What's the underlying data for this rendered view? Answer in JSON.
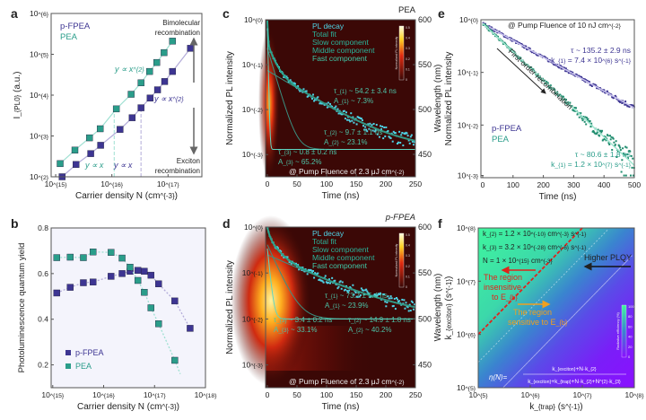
{
  "colors": {
    "pea": "#2a9d8a",
    "pfpea": "#3d3592",
    "pea_light": "#9fe0d2",
    "pfpea_light": "#b3acd9",
    "cyan": "#4fd3e6",
    "fit": "#2aa58e",
    "red": "#e0241b",
    "orange": "#f0a020"
  },
  "panel_labels": [
    "a",
    "b",
    "c",
    "d",
    "e",
    "f"
  ],
  "chart_data": [
    {
      "panel": "a",
      "type": "scatter",
      "xscale": "log",
      "yscale": "log",
      "xlabel": "Carrier density N (cm^{-3})",
      "ylabel": "I_{PL0} (a.u.)",
      "xlim": [
        830000000000000.0,
        4e+17
      ],
      "ylim": [
        100,
        1000000
      ],
      "xticks": [
        1000000000000000.0,
        1e+16,
        1e+17
      ],
      "xtick_labels": [
        "10^{15}",
        "10^{16}",
        "10^{17}"
      ],
      "yticks": [
        100,
        1000,
        10000,
        100000,
        1000000
      ],
      "ytick_labels": [
        "10^{2}",
        "10^{3}",
        "10^{4}",
        "10^{5}",
        "10^{6}"
      ],
      "series": [
        {
          "name": "p-FPEA",
          "x": [
            1300000000000000.0,
            2300000000000000.0,
            4200000000000000.0,
            6300000000000000.0,
            1.4e+16,
            2.3e+16,
            3.3e+16,
            4.8e+16,
            6.5e+16,
            8.7e+16,
            1.2e+17,
            2.5e+17
          ],
          "y": [
            100,
            200,
            370,
            590,
            1450,
            2800,
            4900,
            8500,
            13500,
            21500,
            38000,
            140000
          ]
        },
        {
          "name": "PEA",
          "x": [
            1200000000000000.0,
            2200000000000000.0,
            4000000000000000.0,
            6200000000000000.0,
            1.2e+16,
            2.2e+16,
            3.3e+16,
            4.7e+16,
            6.3e+16,
            8.5e+16,
            1.2e+17
          ],
          "y": [
            210,
            450,
            900,
            1500,
            4600,
            10500,
            20000,
            38000,
            63000,
            110000,
            210000
          ]
        }
      ],
      "threshold_x": {
        "PEA": 1.1e+16,
        "p-FPEA": 3.3e+16
      },
      "annotations": [
        "y ∝ x^{2}",
        "y ∝ x^{2}",
        "y ∝ x",
        "y ∝ x",
        "Bimolecular",
        "recombination",
        "Exciton",
        "recombination"
      ],
      "legend": [
        "p-FPEA",
        "PEA"
      ],
      "legend_position": "top-left"
    },
    {
      "panel": "b",
      "type": "scatter",
      "xscale": "log",
      "xlabel": "Carrier density N (cm^{-3})",
      "ylabel": "Photoluminescence quantum yield",
      "xlim": [
        930000000000000.0,
        1e+18
      ],
      "ylim": [
        0.1,
        0.8
      ],
      "xticks": [
        1000000000000000.0,
        1e+16,
        1e+17,
        1e+18
      ],
      "xtick_labels": [
        "10^{15}",
        "10^{16}",
        "10^{17}",
        "10^{18}"
      ],
      "yticks": [
        0.2,
        0.4,
        0.6,
        0.8
      ],
      "ytick_labels": [
        "0.2",
        "0.4",
        "0.6",
        "0.8"
      ],
      "series": [
        {
          "name": "p-FPEA",
          "x": [
            1200000000000000.0,
            2200000000000000.0,
            4000000000000000.0,
            6200000000000000.0,
            1.4e+16,
            2.3e+16,
            3.3e+16,
            4.7e+16,
            6.3e+16,
            8.5e+16,
            1.2e+17,
            2.5e+17,
            5e+17
          ],
          "y": [
            0.515,
            0.54,
            0.56,
            0.563,
            0.588,
            0.6,
            0.61,
            0.614,
            0.61,
            0.593,
            0.555,
            0.48,
            0.36
          ]
        },
        {
          "name": "PEA",
          "x": [
            1200000000000000.0,
            2200000000000000.0,
            4000000000000000.0,
            6200000000000000.0,
            1.4e+16,
            2.3e+16,
            3.3e+16,
            4.7e+16,
            6.3e+16,
            8.5e+16,
            1.2e+17,
            2.5e+17
          ],
          "y": [
            0.67,
            0.672,
            0.67,
            0.695,
            0.693,
            0.668,
            0.628,
            0.57,
            0.518,
            0.45,
            0.38,
            0.22
          ]
        }
      ],
      "legend": [
        "p-FPEA",
        "PEA"
      ],
      "legend_position": "bottom-left"
    },
    {
      "panel": "c",
      "type": "line",
      "title": "PEA",
      "yscale": "log",
      "xlabel": "Time (ns)",
      "ylabel": "Normalized PL intensity",
      "y2label": "Wavelength (nm)",
      "xlim": [
        0,
        250
      ],
      "ylim": [
        0.00032,
        1
      ],
      "y2lim": [
        425,
        600
      ],
      "xticks": [
        0,
        50,
        100,
        150,
        200,
        250
      ],
      "xtick_labels": [
        "0",
        "50",
        "100",
        "150",
        "200",
        "250"
      ],
      "yticks": [
        0.001,
        0.01,
        0.1,
        1
      ],
      "ytick_labels": [
        "10^{-3}",
        "10^{-2}",
        "10^{-1}",
        "10^{0}"
      ],
      "y2ticks": [
        450,
        500,
        550,
        600
      ],
      "y2tick_labels": [
        "450",
        "500",
        "550",
        "600"
      ],
      "legend": [
        "PL decay",
        "Total fit",
        "Slow component",
        "Middle component",
        "Fast component"
      ],
      "components": [
        {
          "tau": 54.2,
          "amp": 0.073
        },
        {
          "tau": 9.7,
          "amp": 0.231
        },
        {
          "tau": 0.8,
          "amp": 0.652
        }
      ],
      "offset": 0.0013,
      "annotations": [
        "τ_{1} ~ 54.2 ± 3.4 ns",
        "A_{1} ~ 7.3%",
        "τ_{2} ~ 9.7 ± 1.1 ns",
        "A_{2} ~ 23.1%",
        "τ_{3} ~ 0.8 ± 0.2 ns",
        "A_{3} ~ 65.2%",
        "@ Pump Fluence of 2.3 μJ cm^{-2}"
      ],
      "colorbar": {
        "label": "Normalized PL intensity",
        "ticks": [
          "0.5",
          "0.4",
          "0.3",
          "0.2",
          "0.1",
          "0"
        ]
      }
    },
    {
      "panel": "d",
      "type": "line",
      "title": "p-FPEA",
      "yscale": "log",
      "xlabel": "Time (ns)",
      "ylabel": "Normalized PL intensity",
      "y2label": "Wavelength (nm)",
      "xlim": [
        0,
        250
      ],
      "ylim": [
        0.00032,
        1
      ],
      "y2lim": [
        425,
        600
      ],
      "xticks": [
        0,
        50,
        100,
        150,
        200,
        250
      ],
      "xtick_labels": [
        "0",
        "50",
        "100",
        "150",
        "200",
        "250"
      ],
      "yticks": [
        0.001,
        0.01,
        0.1,
        1
      ],
      "ytick_labels": [
        "10^{-3}",
        "10^{-2}",
        "10^{-1}",
        "10^{0}"
      ],
      "y2ticks": [
        450,
        500,
        550,
        600
      ],
      "y2tick_labels": [
        "450",
        "500",
        "550",
        "600"
      ],
      "legend": [
        "PL decay",
        "Total fit",
        "Slow component",
        "Middle component",
        "Fast component"
      ],
      "components": [
        {
          "tau": 73.7,
          "amp": 0.239
        },
        {
          "tau": 14.9,
          "amp": 0.402
        },
        {
          "tau": 3.4,
          "amp": 0.331
        }
      ],
      "offset": 0.01,
      "annotations": [
        "τ_{1} ~ 73.7 ± 5.4 ns",
        "A_{1} ~ 23.9%",
        "τ_{3} ~ 3.4 ± 0.2 ns",
        "A_{3} ~ 33.1%",
        "τ_{2} ~ 14.9 ± 1.8 ns",
        "A_{2} ~ 40.2%",
        "@ Pump Fluence of 2.3 μJ cm^{-2}"
      ],
      "colorbar": {
        "label": "Normalized PL intensity",
        "ticks": [
          "0.5",
          "0.4",
          "0.3",
          "0.2",
          "0.1",
          "0"
        ]
      }
    },
    {
      "panel": "e",
      "type": "line",
      "yscale": "log",
      "xlabel": "Time (ns)",
      "ylabel": "Normalized PL intensity",
      "xlim": [
        0,
        500
      ],
      "ylim": [
        0.001,
        1
      ],
      "xticks": [
        0,
        100,
        200,
        300,
        400,
        500
      ],
      "xtick_labels": [
        "0",
        "100",
        "200",
        "300",
        "400",
        "500"
      ],
      "yticks": [
        0.001,
        0.01,
        0.1,
        1
      ],
      "ytick_labels": [
        "10^{-3}",
        "10^{-2}",
        "10^{-1}",
        "10^{0}"
      ],
      "series": [
        {
          "name": "p-FPEA",
          "tau": 135.2,
          "amp": 0.85
        },
        {
          "name": "PEA",
          "tau": 80.6,
          "amp": 0.85
        }
      ],
      "legend": [
        "p-FPEA",
        "PEA"
      ],
      "legend_position": "left",
      "annotations": [
        "@ Pump Fluence of 10 nJ cm^{-2}",
        "τ ~ 135.2 ± 2.9 ns",
        "k_{1} = 7.4 × 10^{6} s^{-1}",
        "τ ~ 80.6 ± 1.8 ns",
        "k_{1} = 1.2 × 10^{7} s^{-1}",
        "First order recombination"
      ]
    },
    {
      "panel": "f",
      "type": "heatmap",
      "xscale": "log",
      "yscale": "log",
      "xlabel": "k_{trap} (s^{-1})",
      "ylabel": "k_{exciton} (s^{-1})",
      "xlim": [
        100000.0,
        100000000.0
      ],
      "ylim": [
        100000.0,
        100000000.0
      ],
      "xticks": [
        100000.0,
        1000000.0,
        10000000.0,
        100000000.0
      ],
      "xtick_labels": [
        "10^{5}",
        "10^{6}",
        "10^{7}",
        "10^{8}"
      ],
      "yticks": [
        100000.0,
        1000000.0,
        10000000.0,
        100000000.0
      ],
      "ytick_labels": [
        "10^{5}",
        "10^{6}",
        "10^{7}",
        "10^{8}"
      ],
      "boundary_line": {
        "x": [
          100000.0,
          10000000.0
        ],
        "y": [
          1000000.0,
          100000000.0
        ]
      },
      "annotations": [
        "k_{2} = 1.2 × 10^{-10} cm^{-3} s^{-1}",
        "k_{3} = 3.2 × 10^{-28} cm^{-6} s^{-1}",
        "N = 1 × 10^{15} cm^{-3}",
        "Higher PLQY",
        "The region",
        "insensitive",
        "to E_{b}",
        "The region",
        "sensitive to E_{b}",
        "η(N)=",
        "k_{exciton}+N·k_{2}",
        "k_{exciton}+k_{trap}+N·k_{2}+N^{2}·k_{3}"
      ],
      "colorbar": {
        "label": "Radiative efficiency (%)",
        "ticks": [
          "100",
          "80",
          "60",
          "40",
          "20",
          "0"
        ]
      }
    }
  ]
}
